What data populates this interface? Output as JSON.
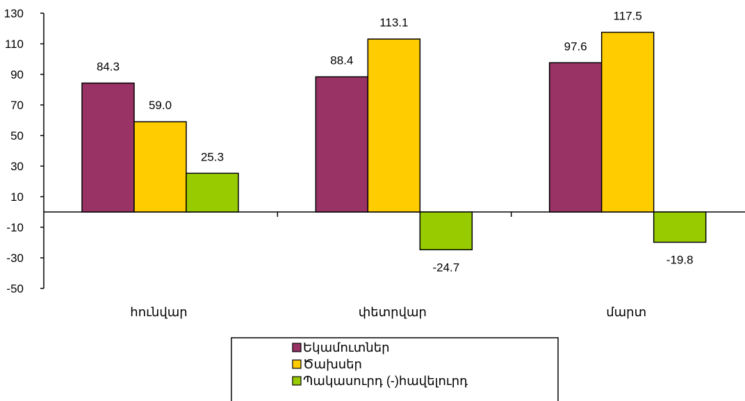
{
  "chart_data": {
    "type": "bar",
    "title": "",
    "xlabel": "",
    "ylabel": "",
    "categories": [
      "հունվար",
      "փետրվար",
      "մարտ"
    ],
    "series": [
      {
        "name": "Եկամուտներ",
        "values": [
          84.3,
          88.4,
          97.6
        ],
        "value_labels": [
          "84.3",
          "88.4",
          "97.6"
        ],
        "color": "#993366"
      },
      {
        "name": "Ծախսեր",
        "values": [
          59.0,
          113.1,
          117.5
        ],
        "value_labels": [
          "59.0",
          "113.1",
          "117.5"
        ],
        "color": "#FFCC00"
      },
      {
        "name": "Պակասուրդ (-)հավելուրդ",
        "values": [
          25.3,
          -24.7,
          -19.8
        ],
        "value_labels": [
          "25.3",
          "-24.7",
          "-19.8"
        ],
        "color": "#99CC00"
      }
    ],
    "ylim": [
      -50,
      130
    ],
    "yticks": [
      -50,
      -30,
      -10,
      10,
      30,
      50,
      70,
      90,
      110,
      130
    ],
    "grid": false,
    "legend_position": "bottom-center",
    "data_labels": true
  }
}
